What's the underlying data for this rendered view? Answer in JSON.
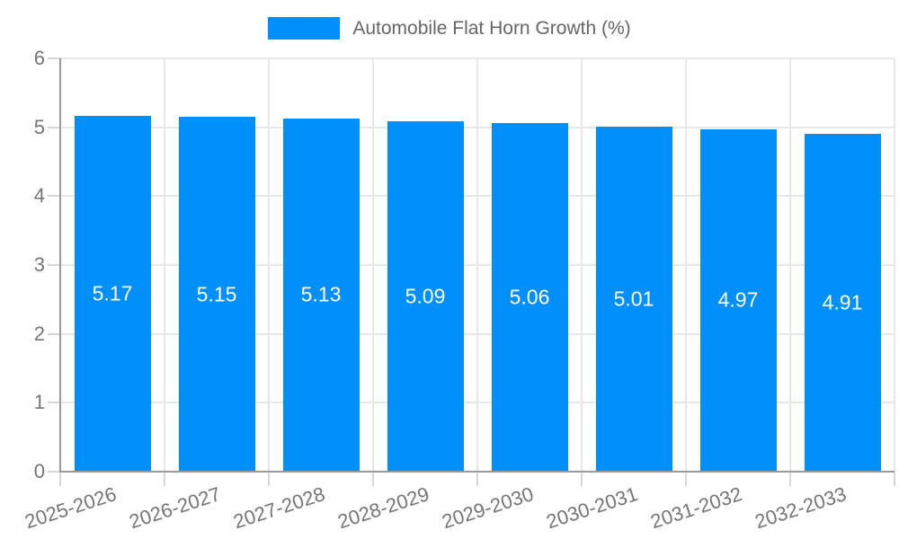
{
  "legend": {
    "label": "Automobile Flat Horn Growth (%)"
  },
  "chart_data": {
    "type": "bar",
    "title": "Automobile Flat Horn Growth (%)",
    "categories": [
      "2025-2026",
      "2026-2027",
      "2027-2028",
      "2028-2029",
      "2029-2030",
      "2030-2031",
      "2031-2032",
      "2032-2033"
    ],
    "values": [
      5.17,
      5.15,
      5.13,
      5.09,
      5.06,
      5.01,
      4.97,
      4.91
    ],
    "value_labels": [
      "5.17",
      "5.15",
      "5.13",
      "5.09",
      "5.06",
      "5.01",
      "4.97",
      "4.91"
    ],
    "xlabel": "",
    "ylabel": "",
    "ylim": [
      0,
      6
    ],
    "yticks": [
      "0",
      "1",
      "2",
      "3",
      "4",
      "5",
      "6"
    ],
    "grid": true,
    "legend_position": "top",
    "x_tick_rotation_deg": -18,
    "colors": {
      "bar": "#008FFB",
      "bar_label": "#ffffff",
      "grid": "#e7e7e7",
      "axis_line": "#9a9a9a",
      "tick": "#d6d6d6",
      "axis_text": "#757575",
      "legend_text": "#666666",
      "background": "#ffffff"
    }
  }
}
